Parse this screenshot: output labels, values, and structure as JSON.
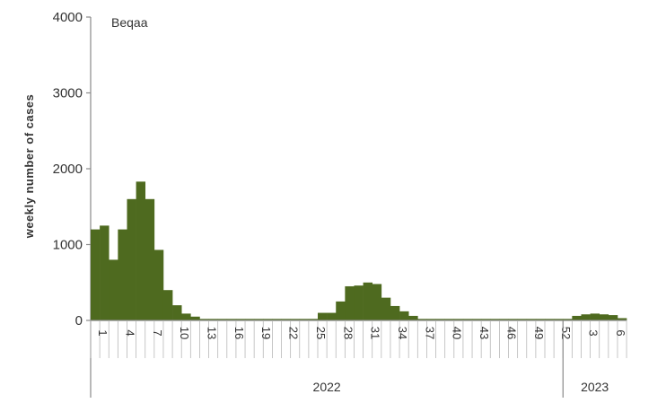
{
  "chart_data": {
    "type": "bar",
    "title": "Beqaa",
    "ylabel": "weekly number of cases",
    "xlabel": "",
    "ylim": [
      0,
      4000
    ],
    "yticks": [
      0,
      1000,
      2000,
      3000,
      4000
    ],
    "grid": false,
    "bar_color": "#4e6a1f",
    "x_tick_labels": [
      "1",
      "4",
      "7",
      "10",
      "13",
      "16",
      "19",
      "22",
      "25",
      "28",
      "31",
      "34",
      "37",
      "40",
      "43",
      "46",
      "49",
      "52",
      "3",
      "6"
    ],
    "year_groups": [
      {
        "label": "2022",
        "weeks": 52
      },
      {
        "label": "2023",
        "weeks": 7
      }
    ],
    "categories": [
      "2022-W1",
      "2022-W2",
      "2022-W3",
      "2022-W4",
      "2022-W5",
      "2022-W6",
      "2022-W7",
      "2022-W8",
      "2022-W9",
      "2022-W10",
      "2022-W11",
      "2022-W12",
      "2022-W13",
      "2022-W14",
      "2022-W15",
      "2022-W16",
      "2022-W17",
      "2022-W18",
      "2022-W19",
      "2022-W20",
      "2022-W21",
      "2022-W22",
      "2022-W23",
      "2022-W24",
      "2022-W25",
      "2022-W26",
      "2022-W27",
      "2022-W28",
      "2022-W29",
      "2022-W30",
      "2022-W31",
      "2022-W32",
      "2022-W33",
      "2022-W34",
      "2022-W35",
      "2022-W36",
      "2022-W37",
      "2022-W38",
      "2022-W39",
      "2022-W40",
      "2022-W41",
      "2022-W42",
      "2022-W43",
      "2022-W44",
      "2022-W45",
      "2022-W46",
      "2022-W47",
      "2022-W48",
      "2022-W49",
      "2022-W50",
      "2022-W51",
      "2022-W52",
      "2023-W1",
      "2023-W2",
      "2023-W3",
      "2023-W4",
      "2023-W5",
      "2023-W6",
      "2023-W7"
    ],
    "values": [
      1200,
      1250,
      800,
      1200,
      1600,
      1830,
      1600,
      930,
      400,
      200,
      90,
      50,
      20,
      20,
      20,
      20,
      20,
      20,
      20,
      20,
      20,
      20,
      20,
      20,
      20,
      100,
      100,
      250,
      450,
      460,
      500,
      480,
      300,
      190,
      120,
      60,
      20,
      20,
      20,
      20,
      20,
      20,
      20,
      20,
      20,
      20,
      20,
      20,
      20,
      20,
      20,
      20,
      20,
      60,
      80,
      90,
      80,
      70,
      30
    ]
  }
}
